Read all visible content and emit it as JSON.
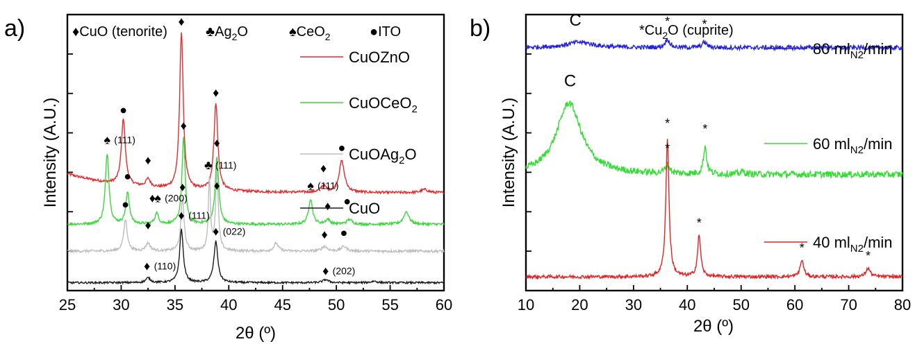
{
  "chart_data": [
    {
      "panel": "a)",
      "type": "line",
      "xlabel": "2θ (º)",
      "ylabel": "Intensity (A.U.)",
      "xlim": [
        25,
        60
      ],
      "x_ticks": [
        25,
        30,
        35,
        40,
        45,
        50,
        55,
        60
      ],
      "phase_legend": [
        {
          "symbol": "♦",
          "text": "CuO (tenorite)"
        },
        {
          "symbol": "♣",
          "text": "Ag",
          "sub": "2",
          "tail": "O"
        },
        {
          "symbol": "♠",
          "text": "CeO",
          "sub": "2",
          "tail": ""
        },
        {
          "symbol": "●",
          "text": "ITO"
        }
      ],
      "series": [
        {
          "name": "CuOZnO",
          "legend_sub": "",
          "legend_tail": "",
          "color": "#e8282b",
          "baseline": 0.62,
          "decay": 0.12,
          "noise": 0.008,
          "peaks": [
            [
              30.2,
              0.42,
              0.22
            ],
            [
              32.5,
              0.05,
              0.25
            ],
            [
              35.6,
              1.0,
              0.2
            ],
            [
              38.8,
              0.55,
              0.22
            ],
            [
              48.8,
              0.04,
              0.3
            ],
            [
              50.5,
              0.2,
              0.3
            ],
            [
              58.2,
              0.02,
              0.4
            ]
          ]
        },
        {
          "name": "CuO",
          "legend_sub": "",
          "legend_tail": "",
          "color": "#3ad63a",
          "baseline": 0.42,
          "decay": 0.0,
          "noise": 0.008,
          "legend_name_main": "CuOCeO",
          "legend_name_sub": "2",
          "peaks": [
            [
              28.7,
              0.45,
              0.2
            ],
            [
              30.6,
              0.2,
              0.2
            ],
            [
              33.3,
              0.07,
              0.2
            ],
            [
              35.8,
              0.55,
              0.18
            ],
            [
              38.9,
              0.42,
              0.2
            ],
            [
              47.6,
              0.16,
              0.22
            ],
            [
              49.2,
              0.03,
              0.25
            ],
            [
              51.2,
              0.03,
              0.3
            ],
            [
              56.5,
              0.08,
              0.3
            ]
          ]
        },
        {
          "name": "CuOAg",
          "legend_sub": "2",
          "legend_tail": "O",
          "color": "#bdbdbd",
          "baseline": 0.25,
          "decay": 0.0,
          "noise": 0.008,
          "peaks": [
            [
              30.4,
              0.2,
              0.2
            ],
            [
              32.5,
              0.05,
              0.25
            ],
            [
              35.7,
              0.33,
              0.18
            ],
            [
              38.2,
              0.45,
              0.12
            ],
            [
              38.9,
              0.5,
              0.15
            ],
            [
              44.4,
              0.05,
              0.25
            ],
            [
              48.9,
              0.03,
              0.3
            ],
            [
              50.7,
              0.03,
              0.3
            ]
          ]
        },
        {
          "name": "CuO",
          "legend_sub": "",
          "legend_tail": "",
          "color": "#1a1a1a",
          "baseline": 0.05,
          "decay": 0.0,
          "noise": 0.006,
          "peaks": [
            [
              32.5,
              0.03,
              0.25
            ],
            [
              35.6,
              0.34,
              0.2
            ],
            [
              38.8,
              0.26,
              0.22
            ],
            [
              49.0,
              0.02,
              0.3
            ],
            [
              53.5,
              0.01,
              0.3
            ]
          ]
        }
      ],
      "annotations": [
        {
          "symbol": "●",
          "x": 30.2,
          "y": 1.12
        },
        {
          "symbol": "♦",
          "x": 32.5,
          "y": 0.8
        },
        {
          "symbol": "♦",
          "x": 35.6,
          "y": 1.68
        },
        {
          "symbol": "♦",
          "x": 38.8,
          "y": 1.23
        },
        {
          "symbol": "♦",
          "x": 48.8,
          "y": 0.75
        },
        {
          "symbol": "●",
          "x": 50.5,
          "y": 0.88
        },
        {
          "symbol": "♠",
          "x": 28.7,
          "y": 0.93,
          "label": "(111)"
        },
        {
          "symbol": "●",
          "x": 30.6,
          "y": 0.7
        },
        {
          "symbol": "♦",
          "x": 32.9,
          "y": 0.56
        },
        {
          "symbol": "♠",
          "x": 33.4,
          "y": 0.56,
          "label": "(200)"
        },
        {
          "symbol": "♦",
          "x": 35.8,
          "y": 1.02
        },
        {
          "symbol": "♦",
          "x": 38.9,
          "y": 0.91
        },
        {
          "symbol": "♠",
          "x": 47.6,
          "y": 0.64,
          "label": "(111)"
        },
        {
          "symbol": "●",
          "x": 51.0,
          "y": 0.54
        },
        {
          "symbol": "♦",
          "x": 49.2,
          "y": 0.51
        },
        {
          "symbol": "●",
          "x": 30.4,
          "y": 0.52
        },
        {
          "symbol": "♦",
          "x": 32.5,
          "y": 0.39
        },
        {
          "symbol": "♦",
          "x": 35.7,
          "y": 0.63
        },
        {
          "symbol": "♣",
          "x": 38.1,
          "y": 0.77,
          "label": "(111)"
        },
        {
          "symbol": "♦",
          "x": 38.9,
          "y": 0.64
        },
        {
          "symbol": "♦",
          "x": 48.9,
          "y": 0.33
        },
        {
          "symbol": "●",
          "x": 50.7,
          "y": 0.34
        },
        {
          "symbol": "♦",
          "x": 32.4,
          "y": 0.13,
          "label": "(110)"
        },
        {
          "symbol": "♦",
          "x": 35.6,
          "y": 0.45,
          "label": "(111)"
        },
        {
          "symbol": "♦",
          "x": 38.8,
          "y": 0.35,
          "label": "(022)"
        },
        {
          "symbol": "♦",
          "x": 49.0,
          "y": 0.1,
          "label": "(202)"
        }
      ]
    },
    {
      "panel": "b)",
      "type": "line",
      "xlabel": "2θ (º)",
      "ylabel": "Intensity (A.U.)",
      "xlim": [
        10,
        80
      ],
      "x_ticks": [
        10,
        20,
        30,
        40,
        50,
        60,
        70,
        80
      ],
      "phase_legend": [
        {
          "symbol": "*",
          "text": "Cu",
          "sub": "2",
          "tail": "O (cuprite)"
        }
      ],
      "series": [
        {
          "name": "80 ml",
          "legend_sub": "N2",
          "legend_tail": "/min",
          "color": "#2222dd",
          "baseline": 0.88,
          "decay": 0.0,
          "noise": 0.008,
          "peaks": [
            [
              20.0,
              0.02,
              3.0
            ],
            [
              36.3,
              0.03,
              0.5
            ],
            [
              43.2,
              0.02,
              0.5
            ]
          ]
        },
        {
          "name": "60 ml",
          "legend_sub": "N2",
          "legend_tail": "/min",
          "color": "#33dd33",
          "baseline": 0.42,
          "decay": 0.0,
          "noise": 0.012,
          "peaks": [
            [
              18.0,
              0.26,
              2.8
            ],
            [
              36.3,
              0.03,
              0.5
            ],
            [
              43.3,
              0.1,
              0.35
            ],
            [
              50.3,
              0.01,
              0.5
            ]
          ]
        },
        {
          "name": "40 ml",
          "legend_sub": "N2",
          "legend_tail": "/min",
          "color": "#e22222",
          "baseline": 0.05,
          "decay": 0.0,
          "noise": 0.006,
          "peaks": [
            [
              36.3,
              0.5,
              0.35
            ],
            [
              42.2,
              0.15,
              0.35
            ],
            [
              61.3,
              0.06,
              0.4
            ],
            [
              73.6,
              0.03,
              0.5
            ]
          ]
        }
      ],
      "annotations": [
        {
          "symbol": "C",
          "x": 19.2,
          "y": 0.96
        },
        {
          "symbol": "*",
          "x": 36.3,
          "y": 0.96
        },
        {
          "symbol": "*",
          "x": 43.2,
          "y": 0.95
        },
        {
          "symbol": "C",
          "x": 18.2,
          "y": 0.74
        },
        {
          "symbol": "*",
          "x": 36.3,
          "y": 0.5
        },
        {
          "symbol": "*",
          "x": 43.3,
          "y": 0.57
        },
        {
          "symbol": "*",
          "x": 36.3,
          "y": 0.59
        },
        {
          "symbol": "*",
          "x": 42.2,
          "y": 0.23
        },
        {
          "symbol": "*",
          "x": 61.3,
          "y": 0.14
        },
        {
          "symbol": "*",
          "x": 73.6,
          "y": 0.11
        }
      ]
    }
  ]
}
